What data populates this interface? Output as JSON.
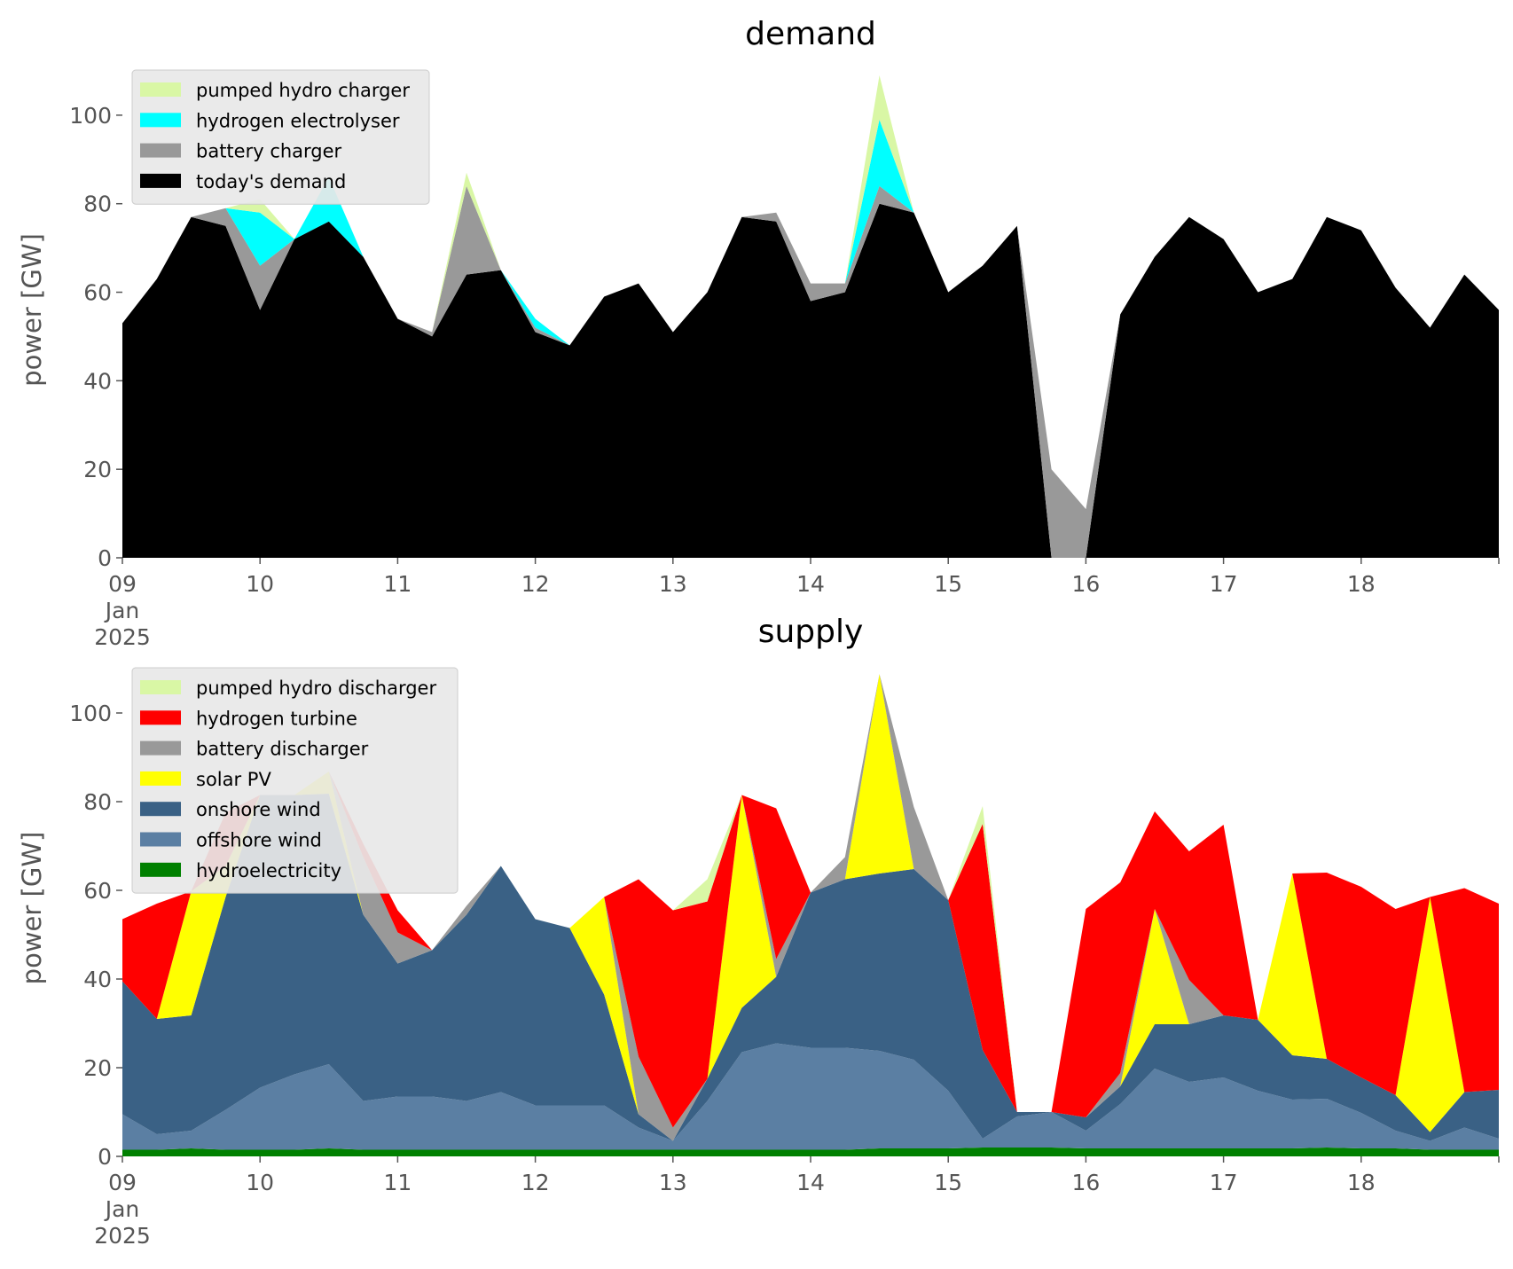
{
  "chart_data": [
    {
      "type": "area",
      "stacked": true,
      "title": "demand",
      "ylabel": "power [GW]",
      "xlabel": "",
      "xlim": [
        "2025-01-09 00:00",
        "2025-01-19 00:00"
      ],
      "ylim": [
        0,
        112
      ],
      "yticks": [
        0,
        20,
        40,
        60,
        80,
        100
      ],
      "xtick_labels": [
        "09\nJan\n2025",
        "10",
        "11",
        "12",
        "13",
        "14",
        "15",
        "16",
        "17",
        "18"
      ],
      "legend_position": "upper-left",
      "grid": false,
      "x": [
        "2025-01-09 00:00",
        "2025-01-09 06:00",
        "2025-01-09 12:00",
        "2025-01-09 18:00",
        "2025-01-10 00:00",
        "2025-01-10 06:00",
        "2025-01-10 12:00",
        "2025-01-10 18:00",
        "2025-01-11 00:00",
        "2025-01-11 06:00",
        "2025-01-11 12:00",
        "2025-01-11 18:00",
        "2025-01-12 00:00",
        "2025-01-12 06:00",
        "2025-01-12 12:00",
        "2025-01-12 18:00",
        "2025-01-13 00:00",
        "2025-01-13 06:00",
        "2025-01-13 12:00",
        "2025-01-13 18:00",
        "2025-01-14 00:00",
        "2025-01-14 06:00",
        "2025-01-14 12:00",
        "2025-01-14 18:00",
        "2025-01-15 00:00",
        "2025-01-15 06:00",
        "2025-01-15 12:00",
        "2025-01-15 18:00",
        "2025-01-16 00:00",
        "2025-01-16 06:00",
        "2025-01-16 12:00",
        "2025-01-16 18:00",
        "2025-01-17 00:00",
        "2025-01-17 06:00",
        "2025-01-17 12:00",
        "2025-01-17 18:00",
        "2025-01-18 00:00",
        "2025-01-18 06:00",
        "2025-01-18 12:00",
        "2025-01-18 18:00",
        "2025-01-19 00:00"
      ],
      "series": [
        {
          "name": "today's demand",
          "color": "#000000",
          "values": [
            53,
            63,
            77,
            75,
            56,
            72,
            76,
            68,
            54,
            50,
            64,
            65,
            51,
            48,
            59,
            62,
            51,
            60,
            77,
            76,
            58,
            60,
            80,
            78,
            60,
            66,
            75,
            0,
            0,
            55,
            68,
            77,
            72,
            60,
            63,
            77,
            74,
            61,
            52,
            64,
            56
          ]
        },
        {
          "name": "battery charger",
          "color": "#999999",
          "values": [
            0,
            0,
            0,
            4,
            10,
            0,
            0,
            0,
            0,
            1,
            20,
            0,
            1,
            0,
            0,
            0,
            0,
            0,
            0,
            2,
            4,
            2,
            4,
            0,
            0,
            0,
            0,
            20,
            11,
            0,
            0,
            0,
            0,
            0,
            0,
            0,
            0,
            0,
            0,
            0,
            0
          ]
        },
        {
          "name": "hydrogen electrolyser",
          "color": "#00ffff",
          "values": [
            0,
            0,
            0,
            0,
            12,
            0,
            10,
            0,
            0,
            0,
            0,
            0,
            2,
            0,
            0,
            0,
            0,
            0,
            0,
            0,
            0,
            0,
            15,
            0,
            0,
            0,
            0,
            0,
            0,
            0,
            0,
            0,
            0,
            0,
            0,
            0,
            0,
            0,
            0,
            0,
            0
          ]
        },
        {
          "name": "pumped hydro charger",
          "color": "#d9f7a5",
          "values": [
            0,
            0,
            0,
            0,
            3,
            0,
            0,
            0,
            0,
            0,
            3,
            0,
            0,
            0,
            0,
            0,
            0,
            0,
            0,
            0,
            0,
            0,
            10,
            0,
            0,
            0,
            0,
            0,
            0,
            0,
            0,
            0,
            0,
            0,
            0,
            0,
            0,
            0,
            0,
            0,
            0
          ]
        }
      ]
    },
    {
      "type": "area",
      "stacked": true,
      "title": "supply",
      "ylabel": "power [GW]",
      "xlabel": "",
      "xlim": [
        "2025-01-09 00:00",
        "2025-01-19 00:00"
      ],
      "ylim": [
        0,
        112
      ],
      "yticks": [
        0,
        20,
        40,
        60,
        80,
        100
      ],
      "xtick_labels": [
        "09\nJan\n2025",
        "10",
        "11",
        "12",
        "13",
        "14",
        "15",
        "16",
        "17",
        "18"
      ],
      "legend_position": "upper-left",
      "grid": false,
      "x": [
        "2025-01-09 00:00",
        "2025-01-09 06:00",
        "2025-01-09 12:00",
        "2025-01-09 18:00",
        "2025-01-10 00:00",
        "2025-01-10 06:00",
        "2025-01-10 12:00",
        "2025-01-10 18:00",
        "2025-01-11 00:00",
        "2025-01-11 06:00",
        "2025-01-11 12:00",
        "2025-01-11 18:00",
        "2025-01-12 00:00",
        "2025-01-12 06:00",
        "2025-01-12 12:00",
        "2025-01-12 18:00",
        "2025-01-13 00:00",
        "2025-01-13 06:00",
        "2025-01-13 12:00",
        "2025-01-13 18:00",
        "2025-01-14 00:00",
        "2025-01-14 06:00",
        "2025-01-14 12:00",
        "2025-01-14 18:00",
        "2025-01-15 00:00",
        "2025-01-15 06:00",
        "2025-01-15 12:00",
        "2025-01-15 18:00",
        "2025-01-16 00:00",
        "2025-01-16 06:00",
        "2025-01-16 12:00",
        "2025-01-16 18:00",
        "2025-01-17 00:00",
        "2025-01-17 06:00",
        "2025-01-17 12:00",
        "2025-01-17 18:00",
        "2025-01-18 00:00",
        "2025-01-18 06:00",
        "2025-01-18 12:00",
        "2025-01-18 18:00",
        "2025-01-19 00:00"
      ],
      "series": [
        {
          "name": "hydroelectricity",
          "color": "#008000",
          "values": [
            1.5,
            1.5,
            1.8,
            1.5,
            1.5,
            1.5,
            1.8,
            1.5,
            1.5,
            1.5,
            1.5,
            1.5,
            1.5,
            1.5,
            1.5,
            1.5,
            1.5,
            1.5,
            1.5,
            1.5,
            1.5,
            1.5,
            1.8,
            1.8,
            1.8,
            2,
            2,
            2,
            1.8,
            1.8,
            1.8,
            1.8,
            1.8,
            1.8,
            1.8,
            2,
            1.8,
            1.8,
            1.5,
            1.5,
            1.5
          ]
        },
        {
          "name": "offshore wind",
          "color": "#5b7fa3",
          "values": [
            8,
            3.5,
            4,
            9,
            14,
            17,
            19,
            11,
            12,
            12,
            11,
            13,
            10,
            10,
            10,
            5,
            2,
            11,
            22,
            24,
            23,
            23,
            22,
            20,
            13,
            2,
            7,
            8,
            4,
            10,
            18,
            15,
            16,
            13,
            11,
            11,
            8,
            4,
            2,
            5,
            2.5
          ]
        },
        {
          "name": "onshore wind",
          "color": "#3a6185",
          "values": [
            30,
            26,
            26,
            48,
            66,
            63,
            61,
            42,
            30,
            33,
            42,
            51,
            42,
            40,
            25,
            3,
            0,
            5,
            10,
            15,
            35,
            38,
            40,
            43,
            43,
            20,
            1,
            0,
            3,
            4,
            10,
            13,
            14,
            16,
            10,
            9,
            8,
            8,
            2,
            8,
            11
          ]
        },
        {
          "name": "solar PV",
          "color": "#ffff00",
          "values": [
            0,
            0,
            28,
            7,
            0,
            0,
            5,
            0,
            0,
            0,
            0,
            0,
            0,
            0,
            22,
            0,
            0,
            0,
            48,
            0,
            0,
            0,
            45,
            0,
            0,
            0,
            0,
            0,
            0,
            0,
            26,
            0,
            0,
            0,
            41,
            0,
            0,
            0,
            53,
            0,
            0
          ]
        },
        {
          "name": "battery discharger",
          "color": "#999999",
          "values": [
            0,
            0,
            0,
            0,
            0,
            0,
            0,
            13,
            7,
            0,
            2,
            0,
            0,
            0,
            0,
            13,
            3,
            0,
            0,
            4,
            0,
            5,
            0,
            14,
            0,
            0,
            0,
            0,
            0,
            3,
            0,
            10,
            0,
            0,
            0,
            0,
            0,
            0,
            0,
            0,
            0
          ]
        },
        {
          "name": "hydrogen turbine",
          "color": "#ff0000",
          "values": [
            14,
            26,
            0,
            12,
            0,
            0,
            0,
            3,
            5,
            0,
            0,
            0,
            0,
            0,
            0,
            40,
            49,
            40,
            0,
            34,
            0,
            0,
            0,
            0,
            0,
            51,
            0,
            0,
            47,
            43,
            22,
            29,
            43,
            0,
            0,
            42,
            43,
            42,
            0,
            46,
            42
          ]
        },
        {
          "name": "pumped hydro discharger",
          "color": "#d9f7a5",
          "values": [
            0,
            0,
            0,
            0,
            0,
            0,
            0,
            0,
            0,
            0,
            0,
            0,
            0,
            0,
            0,
            0,
            0,
            5,
            0,
            0,
            0,
            0,
            0,
            0,
            0,
            4,
            0,
            0,
            0,
            0,
            0,
            0,
            0,
            0,
            0,
            0,
            0,
            0,
            0,
            0,
            0
          ]
        }
      ]
    }
  ]
}
